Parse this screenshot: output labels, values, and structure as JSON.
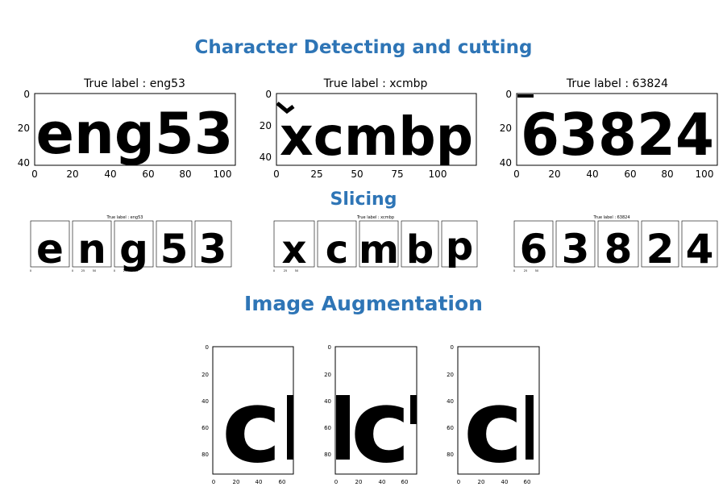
{
  "sections": {
    "detecting": "Character Detecting and cutting",
    "slicing": "Slicing",
    "augmentation": "Image Augmentation"
  },
  "samples": [
    {
      "title": "True label : eng53",
      "text": "eng53",
      "chars": [
        "e",
        "n",
        "g",
        "5",
        "3"
      ],
      "xticks": [
        "0",
        "20",
        "40",
        "60",
        "80",
        "100"
      ],
      "yticks": [
        "0",
        "20",
        "40"
      ],
      "slice_xticks": [
        "0",
        "25",
        "50"
      ]
    },
    {
      "title": "True label : xcmbp",
      "text": "xcmbp",
      "chars": [
        "x",
        "c",
        "m",
        "b",
        "p"
      ],
      "xticks": [
        "0",
        "25",
        "50",
        "75",
        "100"
      ],
      "yticks": [
        "0",
        "20",
        "40"
      ],
      "slice_xticks": [
        "0",
        "25",
        "50"
      ]
    },
    {
      "title": "True label : 63824",
      "text": "63824",
      "chars": [
        "6",
        "3",
        "8",
        "2",
        "4"
      ],
      "xticks": [
        "0",
        "20",
        "40",
        "60",
        "80",
        "100"
      ],
      "yticks": [
        "0",
        "20",
        "40"
      ],
      "slice_xticks": [
        "0",
        "25",
        "50"
      ]
    }
  ],
  "augmentation": {
    "char": "c",
    "xticks": [
      "0",
      "20",
      "40",
      "60"
    ],
    "yticks": [
      "0",
      "20",
      "40",
      "60",
      "80"
    ]
  }
}
